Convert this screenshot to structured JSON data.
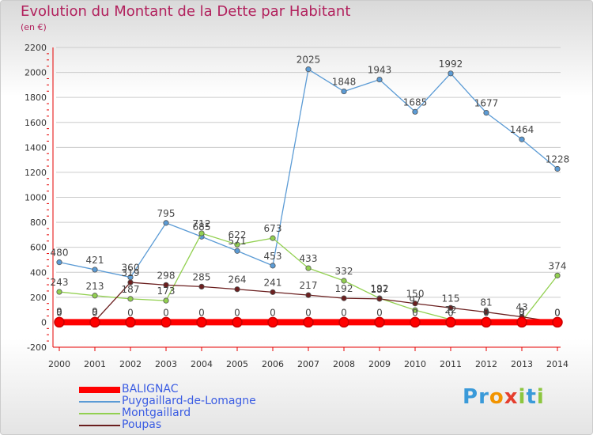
{
  "header": {
    "title": "Evolution du Montant de la Dette par Habitant",
    "subtitle": "(en €)"
  },
  "logo": {
    "text": "Proxiti"
  },
  "colors": {
    "title": "#b2215d",
    "axis_text": "#333333",
    "axis_line": "#e60000",
    "grid": "#cccccc",
    "legend_text": "#3a5ce3"
  },
  "chart_data": {
    "type": "line",
    "title": "Evolution du Montant de la Dette par Habitant",
    "subtitle": "(en €)",
    "xlabel": "",
    "ylabel": "",
    "x": [
      2000,
      2001,
      2002,
      2003,
      2004,
      2005,
      2006,
      2007,
      2008,
      2009,
      2010,
      2011,
      2012,
      2013,
      2014
    ],
    "ylim": [
      -200,
      2200
    ],
    "yticks": [
      -200,
      0,
      200,
      400,
      600,
      800,
      1000,
      1200,
      1400,
      1600,
      1800,
      2000,
      2200
    ],
    "grid": "horizontal",
    "legend_position": "bottom-left",
    "series": [
      {
        "name": "BALIGNAC",
        "color": "#ff0000",
        "style": "thick",
        "values": [
          0,
          0,
          0,
          0,
          0,
          0,
          0,
          0,
          0,
          0,
          0,
          0,
          0,
          0,
          0
        ],
        "labels": [
          "0",
          "0",
          "0",
          "0",
          "0",
          "0",
          "0",
          "0",
          "0",
          "0",
          "0",
          "0",
          "0",
          "0",
          "0"
        ]
      },
      {
        "name": "Puygaillard-de-Lomagne",
        "color": "#5b9bd5",
        "style": "line",
        "values": [
          480,
          421,
          360,
          795,
          685,
          571,
          453,
          2025,
          1848,
          1943,
          1685,
          1992,
          1677,
          1464,
          1228
        ],
        "labels": [
          "480",
          "421",
          "360",
          "795",
          "685",
          "571",
          "453",
          "2025",
          "1848",
          "1943",
          "1685",
          "1992",
          "1677",
          "1464",
          "1228"
        ]
      },
      {
        "name": "Montgaillard",
        "color": "#92d050",
        "style": "line",
        "values": [
          243,
          213,
          187,
          173,
          712,
          622,
          673,
          433,
          332,
          192,
          97,
          22,
          9,
          9,
          374
        ],
        "labels": [
          "243",
          "213",
          "187",
          "173",
          "712",
          "622",
          "673",
          "433",
          "332",
          "192",
          "97",
          "22",
          "9",
          "9",
          "374"
        ]
      },
      {
        "name": "Poupas",
        "color": "#6b1f1f",
        "style": "line",
        "values": [
          9,
          9,
          319,
          298,
          285,
          264,
          241,
          217,
          192,
          187,
          150,
          115,
          81,
          43,
          0
        ],
        "labels": [
          "9",
          "9",
          "319",
          "298",
          "285",
          "264",
          "241",
          "217",
          "192",
          "187",
          "150",
          "115",
          "81",
          "43",
          "0"
        ]
      }
    ]
  }
}
